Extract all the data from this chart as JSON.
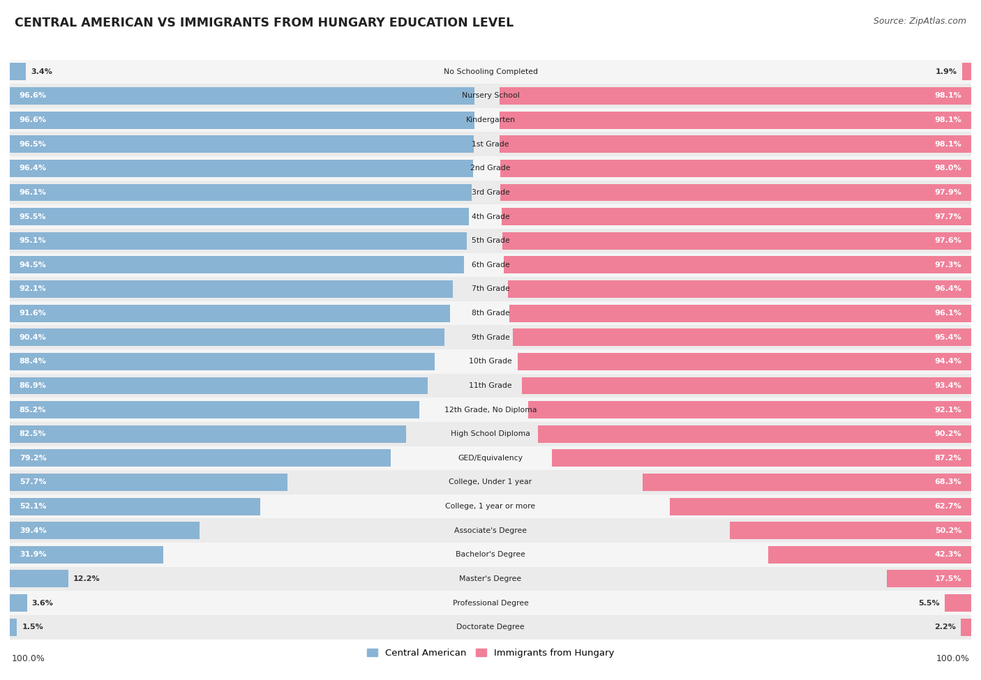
{
  "title": "CENTRAL AMERICAN VS IMMIGRANTS FROM HUNGARY EDUCATION LEVEL",
  "source": "Source: ZipAtlas.com",
  "categories": [
    "No Schooling Completed",
    "Nursery School",
    "Kindergarten",
    "1st Grade",
    "2nd Grade",
    "3rd Grade",
    "4th Grade",
    "5th Grade",
    "6th Grade",
    "7th Grade",
    "8th Grade",
    "9th Grade",
    "10th Grade",
    "11th Grade",
    "12th Grade, No Diploma",
    "High School Diploma",
    "GED/Equivalency",
    "College, Under 1 year",
    "College, 1 year or more",
    "Associate's Degree",
    "Bachelor's Degree",
    "Master's Degree",
    "Professional Degree",
    "Doctorate Degree"
  ],
  "central_american": [
    3.4,
    96.6,
    96.6,
    96.5,
    96.4,
    96.1,
    95.5,
    95.1,
    94.5,
    92.1,
    91.6,
    90.4,
    88.4,
    86.9,
    85.2,
    82.5,
    79.2,
    57.7,
    52.1,
    39.4,
    31.9,
    12.2,
    3.6,
    1.5
  ],
  "hungary": [
    1.9,
    98.1,
    98.1,
    98.1,
    98.0,
    97.9,
    97.7,
    97.6,
    97.3,
    96.4,
    96.1,
    95.4,
    94.4,
    93.4,
    92.1,
    90.2,
    87.2,
    68.3,
    62.7,
    50.2,
    42.3,
    17.5,
    5.5,
    2.2
  ],
  "blue_color": "#8ab4d4",
  "pink_color": "#f08098",
  "legend_blue": "Central American",
  "legend_pink": "Immigrants from Hungary",
  "axis_label_left": "100.0%",
  "axis_label_right": "100.0%",
  "row_colors": [
    "#f5f5f5",
    "#ebebeb"
  ]
}
